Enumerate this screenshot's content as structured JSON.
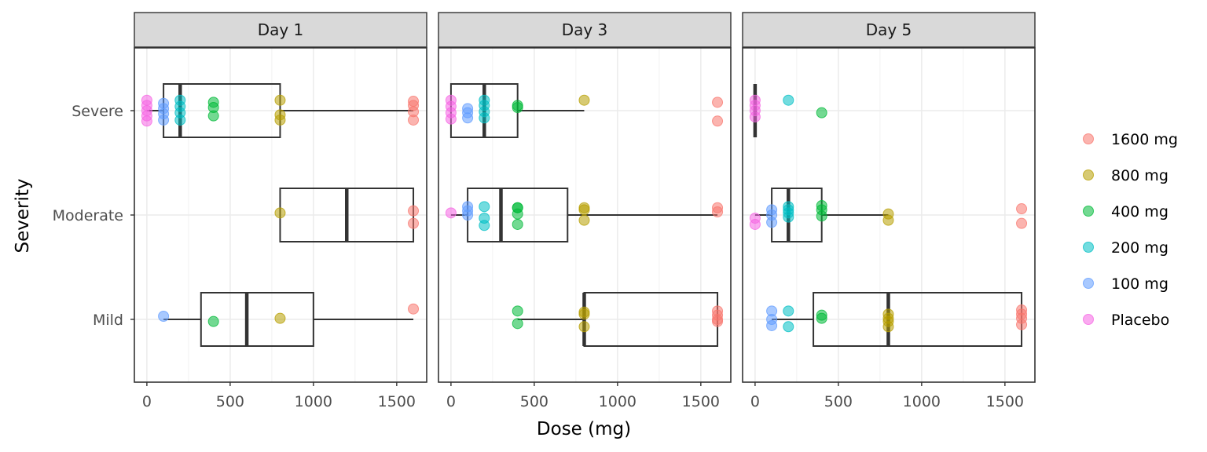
{
  "chart_data": {
    "type": "boxplot",
    "xlabel": "Dose (mg)",
    "ylabel": "Severity",
    "xlim": [
      -75,
      1680
    ],
    "x_ticks": [
      0,
      500,
      1000,
      1500
    ],
    "x_tick_labels": [
      "0",
      "500",
      "1000",
      "1500"
    ],
    "categories": [
      "Severe",
      "Moderate",
      "Mild"
    ],
    "grid": true,
    "legend_position": "right",
    "legend": [
      {
        "name": "1600 mg",
        "color": "#F8766D"
      },
      {
        "name": "800 mg",
        "color": "#B79F00"
      },
      {
        "name": "400 mg",
        "color": "#00BA38"
      },
      {
        "name": "200 mg",
        "color": "#00BFC4"
      },
      {
        "name": "100 mg",
        "color": "#619CFF"
      },
      {
        "name": "Placebo",
        "color": "#F564E3"
      }
    ],
    "panels": [
      {
        "title": "Day 1",
        "boxes": [
          {
            "category": "Severe",
            "min": 0,
            "q1": 100,
            "median": 200,
            "q3": 800,
            "max": 1600
          },
          {
            "category": "Moderate",
            "min": 800,
            "q1": 800,
            "median": 1200,
            "q3": 1600,
            "max": 1600
          },
          {
            "category": "Mild",
            "min": 100,
            "q1": 325,
            "median": 600,
            "q3": 1000,
            "max": 1600
          }
        ],
        "points": [
          {
            "category": "Severe",
            "x": 0,
            "offset": 0.1,
            "group": "Placebo"
          },
          {
            "category": "Severe",
            "x": 0,
            "offset": 0.05,
            "group": "Placebo"
          },
          {
            "category": "Severe",
            "x": 0,
            "offset": 0.0,
            "group": "Placebo"
          },
          {
            "category": "Severe",
            "x": 0,
            "offset": -0.05,
            "group": "Placebo"
          },
          {
            "category": "Severe",
            "x": 0,
            "offset": -0.1,
            "group": "Placebo"
          },
          {
            "category": "Severe",
            "x": 100,
            "offset": 0.07,
            "group": "100 mg"
          },
          {
            "category": "Severe",
            "x": 100,
            "offset": 0.02,
            "group": "100 mg"
          },
          {
            "category": "Severe",
            "x": 100,
            "offset": -0.03,
            "group": "100 mg"
          },
          {
            "category": "Severe",
            "x": 100,
            "offset": -0.09,
            "group": "100 mg"
          },
          {
            "category": "Severe",
            "x": 200,
            "offset": 0.1,
            "group": "200 mg"
          },
          {
            "category": "Severe",
            "x": 200,
            "offset": 0.04,
            "group": "200 mg"
          },
          {
            "category": "Severe",
            "x": 200,
            "offset": -0.02,
            "group": "200 mg"
          },
          {
            "category": "Severe",
            "x": 200,
            "offset": -0.09,
            "group": "200 mg"
          },
          {
            "category": "Severe",
            "x": 400,
            "offset": 0.08,
            "group": "400 mg"
          },
          {
            "category": "Severe",
            "x": 400,
            "offset": 0.03,
            "group": "400 mg"
          },
          {
            "category": "Severe",
            "x": 400,
            "offset": -0.05,
            "group": "400 mg"
          },
          {
            "category": "Severe",
            "x": 800,
            "offset": 0.1,
            "group": "800 mg"
          },
          {
            "category": "Severe",
            "x": 800,
            "offset": -0.04,
            "group": "800 mg"
          },
          {
            "category": "Severe",
            "x": 800,
            "offset": -0.09,
            "group": "800 mg"
          },
          {
            "category": "Severe",
            "x": 1600,
            "offset": 0.09,
            "group": "1600 mg"
          },
          {
            "category": "Severe",
            "x": 1600,
            "offset": 0.05,
            "group": "1600 mg"
          },
          {
            "category": "Severe",
            "x": 1600,
            "offset": -0.01,
            "group": "1600 mg"
          },
          {
            "category": "Severe",
            "x": 1600,
            "offset": -0.09,
            "group": "1600 mg"
          },
          {
            "category": "Moderate",
            "x": 800,
            "offset": 0.02,
            "group": "800 mg"
          },
          {
            "category": "Moderate",
            "x": 1600,
            "offset": 0.04,
            "group": "1600 mg"
          },
          {
            "category": "Moderate",
            "x": 1600,
            "offset": -0.08,
            "group": "1600 mg"
          },
          {
            "category": "Mild",
            "x": 100,
            "offset": 0.03,
            "group": "100 mg"
          },
          {
            "category": "Mild",
            "x": 400,
            "offset": -0.02,
            "group": "400 mg"
          },
          {
            "category": "Mild",
            "x": 800,
            "offset": 0.01,
            "group": "800 mg"
          },
          {
            "category": "Mild",
            "x": 1600,
            "offset": 0.1,
            "group": "1600 mg"
          }
        ]
      },
      {
        "title": "Day 3",
        "boxes": [
          {
            "category": "Severe",
            "min": 0,
            "q1": 0,
            "median": 200,
            "q3": 400,
            "max": 800
          },
          {
            "category": "Moderate",
            "min": 0,
            "q1": 100,
            "median": 300,
            "q3": 700,
            "max": 1600
          },
          {
            "category": "Mild",
            "min": 400,
            "q1": 800,
            "median": 800,
            "q3": 1600,
            "max": 1600
          }
        ],
        "points": [
          {
            "category": "Severe",
            "x": 0,
            "offset": 0.1,
            "group": "Placebo"
          },
          {
            "category": "Severe",
            "x": 0,
            "offset": 0.04,
            "group": "Placebo"
          },
          {
            "category": "Severe",
            "x": 0,
            "offset": -0.02,
            "group": "Placebo"
          },
          {
            "category": "Severe",
            "x": 0,
            "offset": -0.08,
            "group": "Placebo"
          },
          {
            "category": "Severe",
            "x": 100,
            "offset": 0.02,
            "group": "100 mg"
          },
          {
            "category": "Severe",
            "x": 100,
            "offset": -0.02,
            "group": "100 mg"
          },
          {
            "category": "Severe",
            "x": 100,
            "offset": -0.07,
            "group": "100 mg"
          },
          {
            "category": "Severe",
            "x": 200,
            "offset": 0.1,
            "group": "200 mg"
          },
          {
            "category": "Severe",
            "x": 200,
            "offset": 0.05,
            "group": "200 mg"
          },
          {
            "category": "Severe",
            "x": 200,
            "offset": -0.01,
            "group": "200 mg"
          },
          {
            "category": "Severe",
            "x": 200,
            "offset": -0.07,
            "group": "200 mg"
          },
          {
            "category": "Severe",
            "x": 400,
            "offset": 0.05,
            "group": "400 mg"
          },
          {
            "category": "Severe",
            "x": 400,
            "offset": 0.03,
            "group": "400 mg"
          },
          {
            "category": "Severe",
            "x": 800,
            "offset": 0.1,
            "group": "800 mg"
          },
          {
            "category": "Severe",
            "x": 1600,
            "offset": 0.08,
            "group": "1600 mg"
          },
          {
            "category": "Severe",
            "x": 1600,
            "offset": -0.1,
            "group": "1600 mg"
          },
          {
            "category": "Moderate",
            "x": 0,
            "offset": 0.02,
            "group": "Placebo"
          },
          {
            "category": "Moderate",
            "x": 100,
            "offset": 0.08,
            "group": "100 mg"
          },
          {
            "category": "Moderate",
            "x": 100,
            "offset": 0.04,
            "group": "100 mg"
          },
          {
            "category": "Moderate",
            "x": 100,
            "offset": 0.0,
            "group": "100 mg"
          },
          {
            "category": "Moderate",
            "x": 200,
            "offset": 0.08,
            "group": "200 mg"
          },
          {
            "category": "Moderate",
            "x": 200,
            "offset": -0.03,
            "group": "200 mg"
          },
          {
            "category": "Moderate",
            "x": 200,
            "offset": -0.1,
            "group": "200 mg"
          },
          {
            "category": "Moderate",
            "x": 400,
            "offset": 0.07,
            "group": "400 mg"
          },
          {
            "category": "Moderate",
            "x": 400,
            "offset": 0.07,
            "group": "400 mg"
          },
          {
            "category": "Moderate",
            "x": 400,
            "offset": 0.01,
            "group": "400 mg"
          },
          {
            "category": "Moderate",
            "x": 400,
            "offset": -0.09,
            "group": "400 mg"
          },
          {
            "category": "Moderate",
            "x": 800,
            "offset": 0.07,
            "group": "800 mg"
          },
          {
            "category": "Moderate",
            "x": 800,
            "offset": 0.05,
            "group": "800 mg"
          },
          {
            "category": "Moderate",
            "x": 800,
            "offset": -0.05,
            "group": "800 mg"
          },
          {
            "category": "Moderate",
            "x": 1600,
            "offset": 0.07,
            "group": "1600 mg"
          },
          {
            "category": "Moderate",
            "x": 1600,
            "offset": 0.03,
            "group": "1600 mg"
          },
          {
            "category": "Mild",
            "x": 400,
            "offset": 0.08,
            "group": "400 mg"
          },
          {
            "category": "Mild",
            "x": 400,
            "offset": -0.04,
            "group": "400 mg"
          },
          {
            "category": "Mild",
            "x": 800,
            "offset": 0.07,
            "group": "800 mg"
          },
          {
            "category": "Mild",
            "x": 800,
            "offset": 0.05,
            "group": "800 mg"
          },
          {
            "category": "Mild",
            "x": 800,
            "offset": -0.07,
            "group": "800 mg"
          },
          {
            "category": "Mild",
            "x": 1600,
            "offset": 0.08,
            "group": "1600 mg"
          },
          {
            "category": "Mild",
            "x": 1600,
            "offset": 0.04,
            "group": "1600 mg"
          },
          {
            "category": "Mild",
            "x": 1600,
            "offset": 0.0,
            "group": "1600 mg"
          },
          {
            "category": "Mild",
            "x": 1600,
            "offset": -0.02,
            "group": "1600 mg"
          }
        ]
      },
      {
        "title": "Day 5",
        "boxes": [
          {
            "category": "Severe",
            "min": 0,
            "q1": 0,
            "median": 0,
            "q3": 0,
            "max": 0
          },
          {
            "category": "Moderate",
            "min": 0,
            "q1": 100,
            "median": 200,
            "q3": 400,
            "max": 800
          },
          {
            "category": "Mild",
            "min": 100,
            "q1": 350,
            "median": 800,
            "q3": 1600,
            "max": 1600
          }
        ],
        "points": [
          {
            "category": "Severe",
            "x": 0,
            "offset": 0.1,
            "group": "Placebo"
          },
          {
            "category": "Severe",
            "x": 0,
            "offset": 0.05,
            "group": "Placebo"
          },
          {
            "category": "Severe",
            "x": 0,
            "offset": 0.0,
            "group": "Placebo"
          },
          {
            "category": "Severe",
            "x": 0,
            "offset": -0.06,
            "group": "Placebo"
          },
          {
            "category": "Severe",
            "x": 200,
            "offset": 0.1,
            "group": "200 mg"
          },
          {
            "category": "Severe",
            "x": 400,
            "offset": -0.02,
            "group": "400 mg"
          },
          {
            "category": "Moderate",
            "x": 0,
            "offset": -0.03,
            "group": "Placebo"
          },
          {
            "category": "Moderate",
            "x": 0,
            "offset": -0.09,
            "group": "Placebo"
          },
          {
            "category": "Moderate",
            "x": 100,
            "offset": 0.05,
            "group": "100 mg"
          },
          {
            "category": "Moderate",
            "x": 100,
            "offset": 0.0,
            "group": "100 mg"
          },
          {
            "category": "Moderate",
            "x": 100,
            "offset": -0.07,
            "group": "100 mg"
          },
          {
            "category": "Moderate",
            "x": 200,
            "offset": 0.08,
            "group": "200 mg"
          },
          {
            "category": "Moderate",
            "x": 200,
            "offset": 0.05,
            "group": "200 mg"
          },
          {
            "category": "Moderate",
            "x": 200,
            "offset": 0.02,
            "group": "200 mg"
          },
          {
            "category": "Moderate",
            "x": 200,
            "offset": -0.02,
            "group": "200 mg"
          },
          {
            "category": "Moderate",
            "x": 400,
            "offset": 0.09,
            "group": "400 mg"
          },
          {
            "category": "Moderate",
            "x": 400,
            "offset": 0.05,
            "group": "400 mg"
          },
          {
            "category": "Moderate",
            "x": 400,
            "offset": -0.01,
            "group": "400 mg"
          },
          {
            "category": "Moderate",
            "x": 800,
            "offset": 0.01,
            "group": "800 mg"
          },
          {
            "category": "Moderate",
            "x": 800,
            "offset": -0.05,
            "group": "800 mg"
          },
          {
            "category": "Moderate",
            "x": 1600,
            "offset": 0.06,
            "group": "1600 mg"
          },
          {
            "category": "Moderate",
            "x": 1600,
            "offset": -0.08,
            "group": "1600 mg"
          },
          {
            "category": "Mild",
            "x": 100,
            "offset": 0.08,
            "group": "100 mg"
          },
          {
            "category": "Mild",
            "x": 100,
            "offset": 0.0,
            "group": "100 mg"
          },
          {
            "category": "Mild",
            "x": 100,
            "offset": -0.06,
            "group": "100 mg"
          },
          {
            "category": "Mild",
            "x": 200,
            "offset": 0.08,
            "group": "200 mg"
          },
          {
            "category": "Mild",
            "x": 200,
            "offset": -0.07,
            "group": "200 mg"
          },
          {
            "category": "Mild",
            "x": 400,
            "offset": 0.04,
            "group": "400 mg"
          },
          {
            "category": "Mild",
            "x": 400,
            "offset": 0.01,
            "group": "400 mg"
          },
          {
            "category": "Mild",
            "x": 800,
            "offset": 0.05,
            "group": "800 mg"
          },
          {
            "category": "Mild",
            "x": 800,
            "offset": 0.01,
            "group": "800 mg"
          },
          {
            "category": "Mild",
            "x": 800,
            "offset": -0.02,
            "group": "800 mg"
          },
          {
            "category": "Mild",
            "x": 800,
            "offset": -0.07,
            "group": "800 mg"
          },
          {
            "category": "Mild",
            "x": 1600,
            "offset": 0.09,
            "group": "1600 mg"
          },
          {
            "category": "Mild",
            "x": 1600,
            "offset": 0.05,
            "group": "1600 mg"
          },
          {
            "category": "Mild",
            "x": 1600,
            "offset": 0.01,
            "group": "1600 mg"
          },
          {
            "category": "Mild",
            "x": 1600,
            "offset": -0.05,
            "group": "1600 mg"
          }
        ]
      }
    ]
  }
}
